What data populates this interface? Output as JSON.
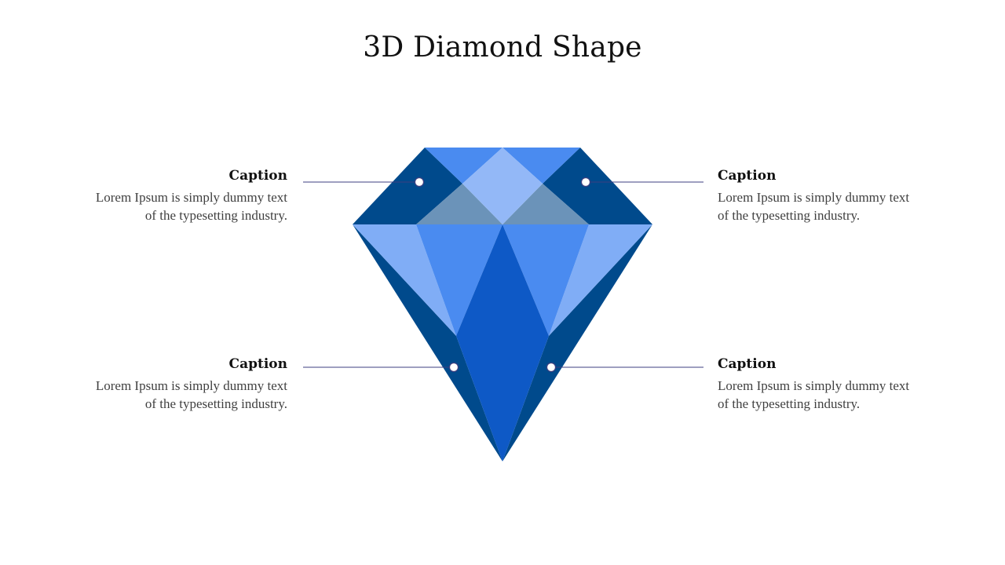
{
  "title": "3D Diamond Shape",
  "colors": {
    "dark_blue": "#004A8C",
    "mid_blue": "#4A8BF0",
    "light_blue": "#80ADF6",
    "pale_blue": "#93B8F7",
    "grey_blue": "#6B93B9",
    "core_blue": "#0E59C6",
    "line": "#3D3F80"
  },
  "captions": {
    "top_left": {
      "title": "Caption",
      "text_line1": "Lorem Ipsum is simply dummy text",
      "text_line2": "of the typesetting industry."
    },
    "bottom_left": {
      "title": "Caption",
      "text_line1": "Lorem Ipsum is simply dummy text",
      "text_line2": "of the typesetting industry."
    },
    "top_right": {
      "title": "Caption",
      "text_line1": "Lorem Ipsum is simply dummy text",
      "text_line2": "of the typesetting industry."
    },
    "bottom_right": {
      "title": "Caption",
      "text_line1": "Lorem Ipsum is simply dummy text",
      "text_line2": "of the typesetting industry."
    }
  }
}
